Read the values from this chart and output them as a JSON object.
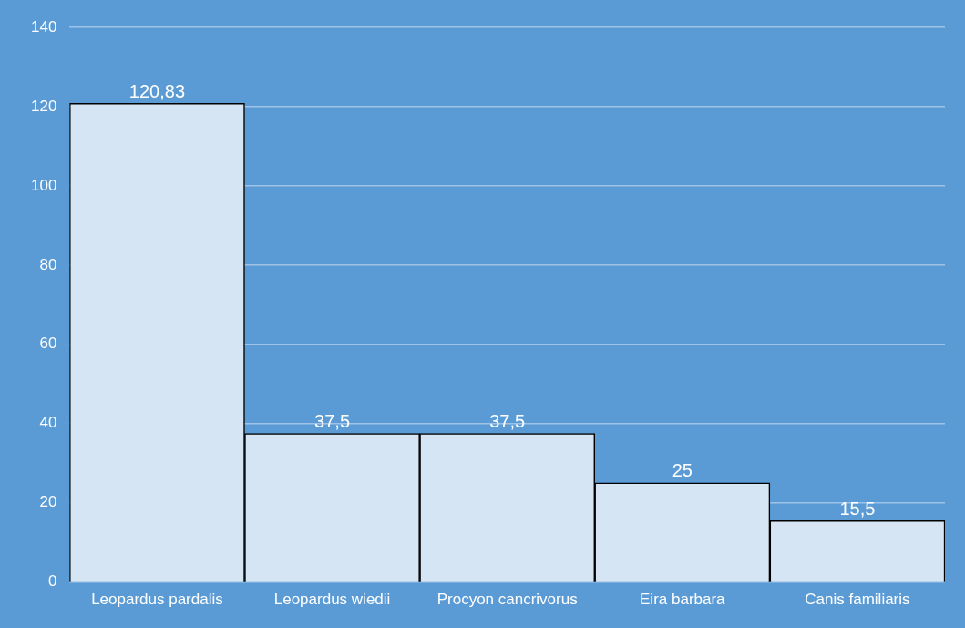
{
  "chart_data": {
    "type": "bar",
    "categories": [
      "Leopardus pardalis",
      "Leopardus wiedii",
      "Procyon cancrivorus",
      "Eira barbara",
      "Canis familiaris"
    ],
    "values": [
      120.83,
      37.5,
      37.5,
      25,
      15.5
    ],
    "value_labels": [
      "120,83",
      "37,5",
      "37,5",
      "25",
      "15,5"
    ],
    "color": "#d6e5f4",
    "ylim": [
      0,
      140
    ],
    "yticks": [
      0,
      20,
      40,
      60,
      80,
      100,
      120,
      140
    ],
    "grid": "y",
    "legend": false
  }
}
